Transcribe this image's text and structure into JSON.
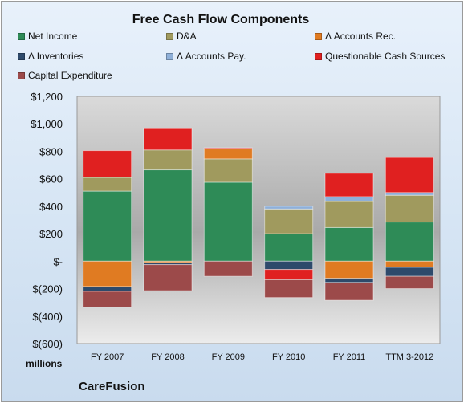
{
  "chart_data": {
    "type": "bar",
    "stacked": true,
    "title": "Free Cash Flow Components",
    "units_label": "millions",
    "company": "CareFusion",
    "categories": [
      "FY 2007",
      "FY 2008",
      "FY 2009",
      "FY 2010",
      "FY 2011",
      "TTM 3-2012"
    ],
    "ylim": [
      -600,
      1200
    ],
    "yticks": [
      -600,
      -400,
      -200,
      0,
      200,
      400,
      600,
      800,
      1000,
      1200
    ],
    "ytick_labels": [
      "$(600)",
      "$(400)",
      "$(200)",
      "$-",
      "$200",
      "$400",
      "$600",
      "$800",
      "$1,000",
      "$1,200"
    ],
    "grid": false,
    "legend_position": "top",
    "series": [
      {
        "name": "Net Income",
        "color": "#2e8b57",
        "values": [
          510,
          665,
          575,
          200,
          245,
          285
        ]
      },
      {
        "name": "D&A",
        "color": "#a09a5e",
        "values": [
          100,
          145,
          170,
          180,
          190,
          195
        ]
      },
      {
        "name": "Δ Accounts Rec.",
        "color": "#e07b22",
        "values": [
          -185,
          -10,
          75,
          0,
          -125,
          -45
        ]
      },
      {
        "name": "Δ Inventories",
        "color": "#2e4a6b",
        "values": [
          -35,
          -15,
          0,
          -60,
          -30,
          -65
        ]
      },
      {
        "name": "Δ Accounts Pay.",
        "color": "#8fb0d9",
        "values": [
          0,
          0,
          0,
          20,
          35,
          20
        ]
      },
      {
        "name": "Questionable Cash Sources",
        "color": "#e02020",
        "values": [
          195,
          155,
          5,
          -75,
          170,
          255
        ]
      },
      {
        "name": "Capital Expenditure",
        "color": "#9c4a4a",
        "values": [
          -115,
          -190,
          -110,
          -130,
          -130,
          -90
        ]
      }
    ]
  }
}
